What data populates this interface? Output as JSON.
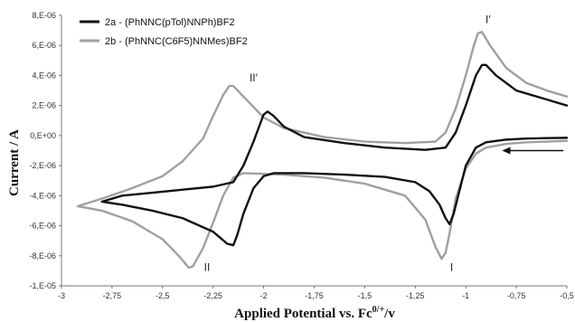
{
  "chart_data": {
    "type": "line",
    "title": "",
    "xlabel": "Applied Potential vs. Fc",
    "xlabel_sup": "0/+",
    "xlabel_suffix": "/v",
    "ylabel": "Current / A",
    "xlim": [
      -3,
      -0.5
    ],
    "ylim": [
      -1e-05,
      8e-06
    ],
    "x_ticks": [
      -3,
      -2.75,
      -2.5,
      -2.25,
      -2,
      -1.75,
      -1.5,
      -1.25,
      -1,
      -0.75,
      -0.5
    ],
    "x_tick_labels": [
      "-3",
      "-2,75",
      "-2,5",
      "-2,25",
      "-2",
      "-1,75",
      "-1,5",
      "-1,25",
      "-1",
      "-0,75",
      "-0,5"
    ],
    "y_ticks": [
      -1e-05,
      -8e-06,
      -6e-06,
      -4e-06,
      -2e-06,
      0,
      2e-06,
      4e-06,
      6e-06,
      8e-06
    ],
    "y_tick_labels": [
      "-1,E-05",
      "-8,E-06",
      "-6,E-06",
      "-4,E-06",
      "-2,E-06",
      "0,E+00",
      "2,E-06",
      "4,E-06",
      "6,E-06",
      "8,E-06"
    ],
    "grid": false,
    "legend_position": "top-left",
    "series": [
      {
        "name": "2a - (PhNNC(pTol)NNPh)BF2",
        "color": "#111111",
        "forward": [
          [
            -0.5,
            -1.5e-07
          ],
          [
            -0.6,
            -1.7e-07
          ],
          [
            -0.7,
            -2e-07
          ],
          [
            -0.8,
            -2.7e-07
          ],
          [
            -0.9,
            -4.5e-07
          ],
          [
            -0.95,
            -8e-07
          ],
          [
            -1.0,
            -2e-06
          ],
          [
            -1.03,
            -3.6e-06
          ],
          [
            -1.06,
            -5.2e-06
          ],
          [
            -1.08,
            -5.9e-06
          ],
          [
            -1.1,
            -5.5e-06
          ],
          [
            -1.13,
            -4.6e-06
          ],
          [
            -1.18,
            -3.7e-06
          ],
          [
            -1.25,
            -3.1e-06
          ],
          [
            -1.4,
            -2.75e-06
          ],
          [
            -1.6,
            -2.6e-06
          ],
          [
            -1.8,
            -2.5e-06
          ],
          [
            -1.95,
            -2.5e-06
          ],
          [
            -2.0,
            -2.7e-06
          ],
          [
            -2.05,
            -3.5e-06
          ],
          [
            -2.1,
            -5.2e-06
          ],
          [
            -2.13,
            -6.6e-06
          ],
          [
            -2.15,
            -7.3e-06
          ],
          [
            -2.18,
            -7.2e-06
          ],
          [
            -2.25,
            -6.4e-06
          ],
          [
            -2.4,
            -5.5e-06
          ],
          [
            -2.55,
            -5e-06
          ],
          [
            -2.7,
            -4.6e-06
          ],
          [
            -2.8,
            -4.4e-06
          ]
        ],
        "reverse": [
          [
            -2.8,
            -4.4e-06
          ],
          [
            -2.7,
            -4e-06
          ],
          [
            -2.55,
            -3.8e-06
          ],
          [
            -2.4,
            -3.6e-06
          ],
          [
            -2.25,
            -3.4e-06
          ],
          [
            -2.15,
            -3.1e-06
          ],
          [
            -2.1,
            -2e-06
          ],
          [
            -2.05,
            -4e-07
          ],
          [
            -2.0,
            1.4e-06
          ],
          [
            -1.98,
            1.6e-06
          ],
          [
            -1.95,
            1.3e-06
          ],
          [
            -1.9,
            6e-07
          ],
          [
            -1.8,
            -1e-07
          ],
          [
            -1.6,
            -5e-07
          ],
          [
            -1.4,
            -8e-07
          ],
          [
            -1.2,
            -9.5e-07
          ],
          [
            -1.1,
            -8e-07
          ],
          [
            -1.05,
            2e-07
          ],
          [
            -1.0,
            2e-06
          ],
          [
            -0.95,
            4e-06
          ],
          [
            -0.92,
            4.7e-06
          ],
          [
            -0.9,
            4.7e-06
          ],
          [
            -0.85,
            4e-06
          ],
          [
            -0.75,
            3e-06
          ],
          [
            -0.6,
            2.4e-06
          ],
          [
            -0.5,
            2e-06
          ]
        ]
      },
      {
        "name": "2b - (PhNNC(C6F5)NNMes)BF2",
        "color": "#a0a0a0",
        "forward": [
          [
            -0.5,
            -3.5e-07
          ],
          [
            -0.6,
            -4e-07
          ],
          [
            -0.7,
            -4.5e-07
          ],
          [
            -0.8,
            -5.5e-07
          ],
          [
            -0.9,
            -8e-07
          ],
          [
            -0.95,
            -1.2e-06
          ],
          [
            -1.0,
            -2.2e-06
          ],
          [
            -1.05,
            -4.2e-06
          ],
          [
            -1.08,
            -6.5e-06
          ],
          [
            -1.1,
            -7.8e-06
          ],
          [
            -1.12,
            -8.2e-06
          ],
          [
            -1.15,
            -7.4e-06
          ],
          [
            -1.2,
            -5.6e-06
          ],
          [
            -1.3,
            -4e-06
          ],
          [
            -1.5,
            -3.2e-06
          ],
          [
            -1.7,
            -2.8e-06
          ],
          [
            -1.9,
            -2.6e-06
          ],
          [
            -2.1,
            -2.5e-06
          ],
          [
            -2.15,
            -2.8e-06
          ],
          [
            -2.2,
            -4e-06
          ],
          [
            -2.25,
            -5.8e-06
          ],
          [
            -2.3,
            -7.5e-06
          ],
          [
            -2.35,
            -8.7e-06
          ],
          [
            -2.37,
            -8.8e-06
          ],
          [
            -2.42,
            -8e-06
          ],
          [
            -2.5,
            -6.9e-06
          ],
          [
            -2.65,
            -5.7e-06
          ],
          [
            -2.8,
            -5e-06
          ],
          [
            -2.92,
            -4.7e-06
          ]
        ],
        "reverse": [
          [
            -2.92,
            -4.7e-06
          ],
          [
            -2.8,
            -4.2e-06
          ],
          [
            -2.65,
            -3.5e-06
          ],
          [
            -2.5,
            -2.7e-06
          ],
          [
            -2.4,
            -1.7e-06
          ],
          [
            -2.3,
            -2e-07
          ],
          [
            -2.25,
            1.3e-06
          ],
          [
            -2.2,
            2.7e-06
          ],
          [
            -2.17,
            3.3e-06
          ],
          [
            -2.15,
            3.3e-06
          ],
          [
            -2.1,
            2.6e-06
          ],
          [
            -2.0,
            1.2e-06
          ],
          [
            -1.9,
            5e-07
          ],
          [
            -1.7,
            -1e-07
          ],
          [
            -1.5,
            -4e-07
          ],
          [
            -1.3,
            -5e-07
          ],
          [
            -1.15,
            -4e-07
          ],
          [
            -1.1,
            2e-07
          ],
          [
            -1.05,
            1.8e-06
          ],
          [
            -1.0,
            4e-06
          ],
          [
            -0.96,
            6e-06
          ],
          [
            -0.94,
            6.8e-06
          ],
          [
            -0.92,
            6.9e-06
          ],
          [
            -0.88,
            6e-06
          ],
          [
            -0.8,
            4.5e-06
          ],
          [
            -0.7,
            3.5e-06
          ],
          [
            -0.6,
            3e-06
          ],
          [
            -0.5,
            2.6e-06
          ]
        ]
      }
    ],
    "annotations": [
      {
        "id": "I",
        "label": "I",
        "x": -1.07,
        "y": -9e-06
      },
      {
        "id": "I-prime",
        "label": "I′",
        "x": -0.89,
        "y": 7.5e-06
      },
      {
        "id": "II",
        "label": "II",
        "x": -2.28,
        "y": -9e-06
      },
      {
        "id": "II-prime",
        "label": "II′",
        "x": -2.05,
        "y": 3.6e-06
      }
    ],
    "scan_direction_arrow": {
      "from_x": -0.5,
      "to_x": -0.82,
      "y": -1e-06,
      "color": "#111111"
    }
  }
}
